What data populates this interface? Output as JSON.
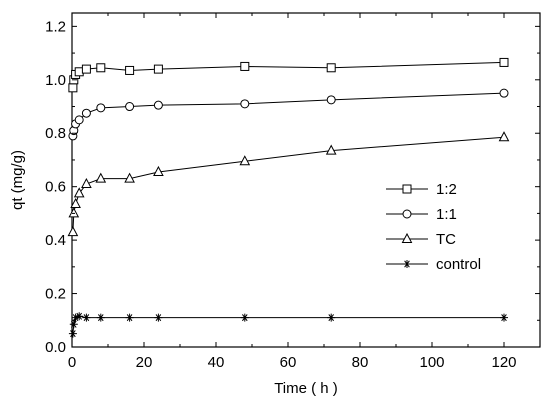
{
  "chart_data": {
    "type": "line",
    "xlabel": "Time ( h )",
    "ylabel": "qt (mg/g)",
    "xlim": [
      0,
      130
    ],
    "ylim": [
      0,
      1.25
    ],
    "xticks": [
      0,
      20,
      40,
      60,
      80,
      100,
      120
    ],
    "yticks": [
      0.0,
      0.2,
      0.4,
      0.6,
      0.8,
      1.0,
      1.2
    ],
    "xtick_labels": [
      "0",
      "20",
      "40",
      "60",
      "80",
      "100",
      "120"
    ],
    "ytick_labels": [
      "0.0",
      "0.2",
      "0.4",
      "0.6",
      "0.8",
      "1.0",
      "1.2"
    ],
    "grid": false,
    "legend_position": "center-right",
    "series": [
      {
        "name": "1:2",
        "marker": "square",
        "x": [
          0.25,
          0.5,
          1,
          2,
          4,
          8,
          16,
          24,
          48,
          72,
          120
        ],
        "y": [
          0.97,
          1.0,
          1.02,
          1.03,
          1.04,
          1.045,
          1.035,
          1.04,
          1.05,
          1.045,
          1.065
        ]
      },
      {
        "name": "1:1",
        "marker": "circle",
        "x": [
          0.25,
          0.5,
          1,
          2,
          4,
          8,
          16,
          24,
          48,
          72,
          120
        ],
        "y": [
          0.79,
          0.81,
          0.835,
          0.85,
          0.875,
          0.895,
          0.9,
          0.905,
          0.91,
          0.925,
          0.95
        ]
      },
      {
        "name": "TC",
        "marker": "triangle",
        "x": [
          0.25,
          0.5,
          1,
          2,
          4,
          8,
          16,
          24,
          48,
          72,
          120
        ],
        "y": [
          0.43,
          0.5,
          0.535,
          0.575,
          0.61,
          0.63,
          0.63,
          0.655,
          0.695,
          0.735,
          0.785
        ]
      },
      {
        "name": "control",
        "marker": "star",
        "x": [
          0.25,
          0.5,
          1,
          2,
          4,
          8,
          16,
          24,
          48,
          72,
          120
        ],
        "y": [
          0.05,
          0.085,
          0.11,
          0.115,
          0.11,
          0.11,
          0.11,
          0.11,
          0.11,
          0.11,
          0.11
        ]
      }
    ]
  }
}
